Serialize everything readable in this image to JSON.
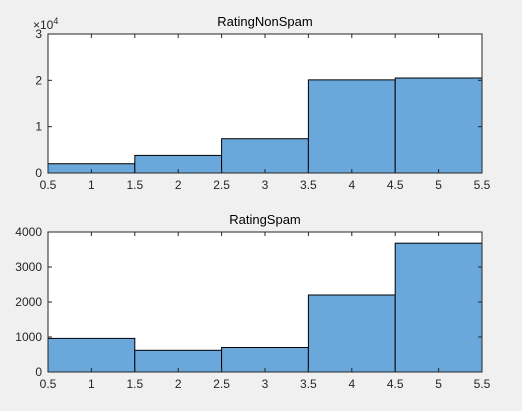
{
  "chart_data": [
    {
      "type": "bar",
      "title": "RatingNonSpam",
      "xlabel": "",
      "ylabel": "",
      "bin_edges": [
        0.5,
        1.5,
        2.5,
        3.5,
        4.5,
        5.5
      ],
      "values": [
        2000,
        3800,
        7400,
        20100,
        20500
      ],
      "xlim": [
        0.5,
        5.5
      ],
      "ylim": [
        0,
        30000
      ],
      "xticks": [
        0.5,
        1,
        1.5,
        2,
        2.5,
        3,
        3.5,
        4,
        4.5,
        5,
        5.5
      ],
      "xtick_labels": [
        "0.5",
        "1",
        "1.5",
        "2",
        "2.5",
        "3",
        "3.5",
        "4",
        "4.5",
        "5",
        "5.5"
      ],
      "yticks": [
        0,
        10000,
        20000,
        30000
      ],
      "ytick_labels": [
        "0",
        "1",
        "2",
        "3"
      ],
      "exponent_label": {
        "base": "×10",
        "exp": "4"
      },
      "bar_color": "#6aa8dc",
      "grid": false
    },
    {
      "type": "bar",
      "title": "RatingSpam",
      "xlabel": "",
      "ylabel": "",
      "bin_edges": [
        0.5,
        1.5,
        2.5,
        3.5,
        4.5,
        5.5
      ],
      "values": [
        960,
        620,
        700,
        2200,
        3680
      ],
      "xlim": [
        0.5,
        5.5
      ],
      "ylim": [
        0,
        4000
      ],
      "xticks": [
        0.5,
        1,
        1.5,
        2,
        2.5,
        3,
        3.5,
        4,
        4.5,
        5,
        5.5
      ],
      "xtick_labels": [
        "0.5",
        "1",
        "1.5",
        "2",
        "2.5",
        "3",
        "3.5",
        "4",
        "4.5",
        "5",
        "5.5"
      ],
      "yticks": [
        0,
        1000,
        2000,
        3000,
        4000
      ],
      "ytick_labels": [
        "0",
        "1000",
        "2000",
        "3000",
        "4000"
      ],
      "bar_color": "#6aa8dc",
      "grid": false
    }
  ]
}
